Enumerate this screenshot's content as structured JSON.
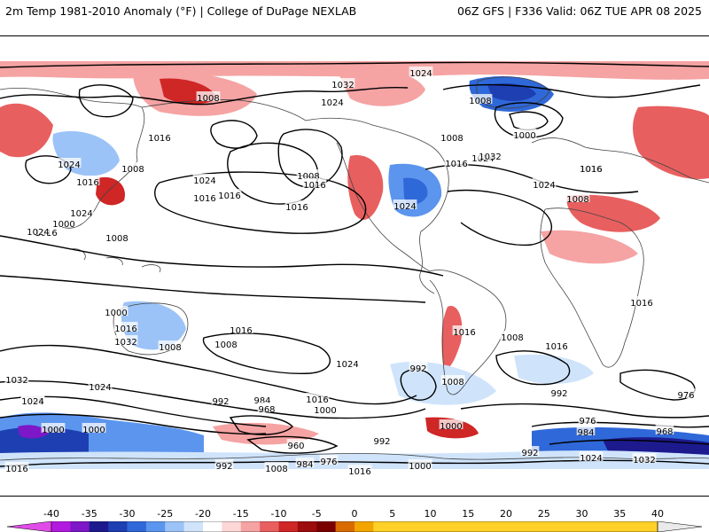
{
  "header": {
    "title_left": "2m Temp 1981-2010 Anomaly (°F) | College of DuPage NEXLAB",
    "title_right": "06Z GFS | F336 Valid: 06Z TUE APR 08 2025"
  },
  "colorbar": {
    "ticks": [
      "-40",
      "-35",
      "-30",
      "-25",
      "-20",
      "-15",
      "-10",
      "-5",
      "0",
      "5",
      "10",
      "15",
      "20",
      "25",
      "30",
      "35",
      "40"
    ],
    "colors": [
      "#e14ce8",
      "#b21adf",
      "#7d17c7",
      "#1d1a8e",
      "#1d3fb2",
      "#2f68d8",
      "#5c95ee",
      "#9cc3f7",
      "#cfe4fb",
      "#ffffff",
      "#fdd6d6",
      "#f5a3a3",
      "#e85f5f",
      "#cf2626",
      "#9c0d0d",
      "#7a0000",
      "#d86a00",
      "#f2a500",
      "#ffd028",
      "#eaeaea"
    ]
  },
  "isobars": [
    {
      "value": "1016"
    },
    {
      "value": "1024"
    },
    {
      "value": "1032"
    },
    {
      "value": "1024"
    },
    {
      "value": "1008"
    },
    {
      "value": "1016"
    },
    {
      "value": "1024"
    },
    {
      "value": "1016"
    },
    {
      "value": "1016"
    },
    {
      "value": "1008"
    },
    {
      "value": "1016"
    },
    {
      "value": "1024"
    },
    {
      "value": "1008"
    },
    {
      "value": "1000"
    },
    {
      "value": "1008"
    },
    {
      "value": "1016"
    },
    {
      "value": "1024"
    },
    {
      "value": "1032"
    },
    {
      "value": "1024"
    },
    {
      "value": "1016"
    },
    {
      "value": "1008"
    },
    {
      "value": "1016"
    },
    {
      "value": "1016"
    },
    {
      "value": "1008"
    },
    {
      "value": "1016"
    },
    {
      "value": "1016"
    },
    {
      "value": "1008"
    },
    {
      "value": "1016"
    },
    {
      "value": "1024"
    },
    {
      "value": "1008"
    },
    {
      "value": "992"
    },
    {
      "value": "984"
    },
    {
      "value": "968"
    },
    {
      "value": "1016"
    },
    {
      "value": "1000"
    },
    {
      "value": "1008"
    },
    {
      "value": "992"
    },
    {
      "value": "1000"
    },
    {
      "value": "992"
    },
    {
      "value": "976"
    },
    {
      "value": "976"
    },
    {
      "value": "984"
    },
    {
      "value": "968"
    },
    {
      "value": "1000"
    },
    {
      "value": "960"
    },
    {
      "value": "992"
    },
    {
      "value": "992"
    },
    {
      "value": "1008"
    },
    {
      "value": "984"
    },
    {
      "value": "976"
    },
    {
      "value": "1016"
    },
    {
      "value": "1000"
    },
    {
      "value": "1024"
    },
    {
      "value": "1032"
    },
    {
      "value": "992"
    },
    {
      "value": "1000"
    },
    {
      "value": "1016"
    },
    {
      "value": "1032"
    },
    {
      "value": "1024"
    },
    {
      "value": "1000"
    },
    {
      "value": "1032"
    },
    {
      "value": "1016"
    },
    {
      "value": "1024"
    },
    {
      "value": "1016"
    },
    {
      "value": "1008"
    },
    {
      "value": "1008"
    },
    {
      "value": "1016"
    },
    {
      "value": "1024"
    },
    {
      "value": "1024"
    },
    {
      "value": "1000"
    },
    {
      "value": "1016"
    },
    {
      "value": "1024"
    },
    {
      "value": "1008"
    }
  ]
}
